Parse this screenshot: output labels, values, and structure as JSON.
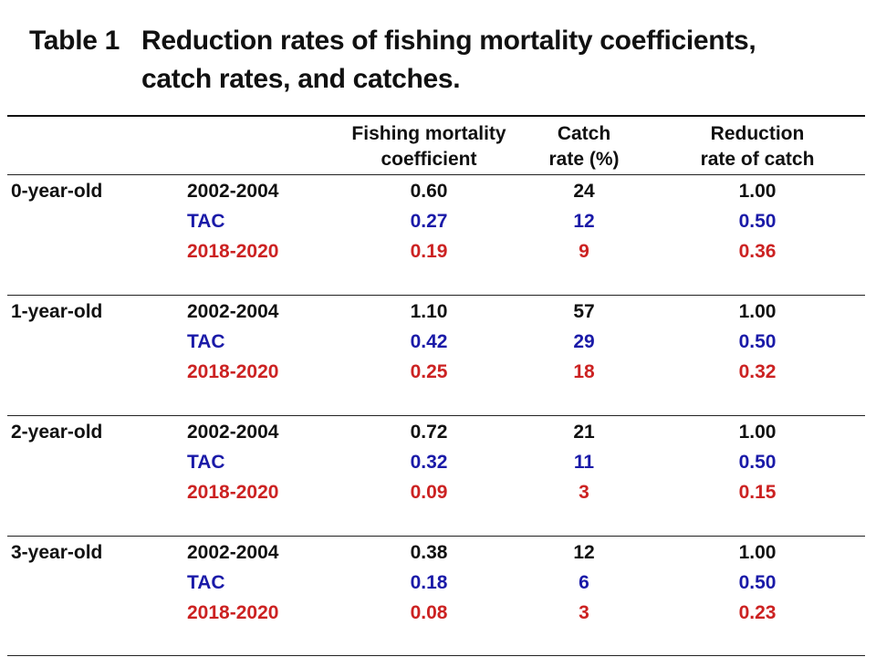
{
  "title": {
    "label": "Table 1",
    "line1": "Reduction rates of fishing mortality  coefficients,",
    "line2": "catch rates, and catches."
  },
  "headers": {
    "fishing_mortality": [
      "Fishing mortality",
      "coefficient"
    ],
    "catch_rate": [
      "Catch",
      "rate (%)"
    ],
    "reduction_rate": [
      "Reduction",
      "rate of catch"
    ]
  },
  "colors": {
    "baseline": "#111111",
    "tac": "#1a1aa8",
    "recent": "#cc2222"
  },
  "groups": [
    {
      "age": "0-year-old",
      "rows": [
        {
          "period": "2002-2004",
          "f": "0.60",
          "catch_rate": "24",
          "reduction": "1.00"
        },
        {
          "period": "TAC",
          "f": "0.27",
          "catch_rate": "12",
          "reduction": "0.50"
        },
        {
          "period": "2018-2020",
          "f": "0.19",
          "catch_rate": "9",
          "reduction": "0.36"
        }
      ]
    },
    {
      "age": "1-year-old",
      "rows": [
        {
          "period": "2002-2004",
          "f": "1.10",
          "catch_rate": "57",
          "reduction": "1.00"
        },
        {
          "period": "TAC",
          "f": "0.42",
          "catch_rate": "29",
          "reduction": "0.50"
        },
        {
          "period": "2018-2020",
          "f": "0.25",
          "catch_rate": "18",
          "reduction": "0.32"
        }
      ]
    },
    {
      "age": "2-year-old",
      "rows": [
        {
          "period": "2002-2004",
          "f": "0.72",
          "catch_rate": "21",
          "reduction": "1.00"
        },
        {
          "period": "TAC",
          "f": "0.32",
          "catch_rate": "11",
          "reduction": "0.50"
        },
        {
          "period": "2018-2020",
          "f": "0.09",
          "catch_rate": "3",
          "reduction": "0.15"
        }
      ]
    },
    {
      "age": "3-year-old",
      "rows": [
        {
          "period": "2002-2004",
          "f": "0.38",
          "catch_rate": "12",
          "reduction": "1.00"
        },
        {
          "period": "TAC",
          "f": "0.18",
          "catch_rate": "6",
          "reduction": "0.50"
        },
        {
          "period": "2018-2020",
          "f": "0.08",
          "catch_rate": "3",
          "reduction": "0.23"
        }
      ]
    }
  ]
}
